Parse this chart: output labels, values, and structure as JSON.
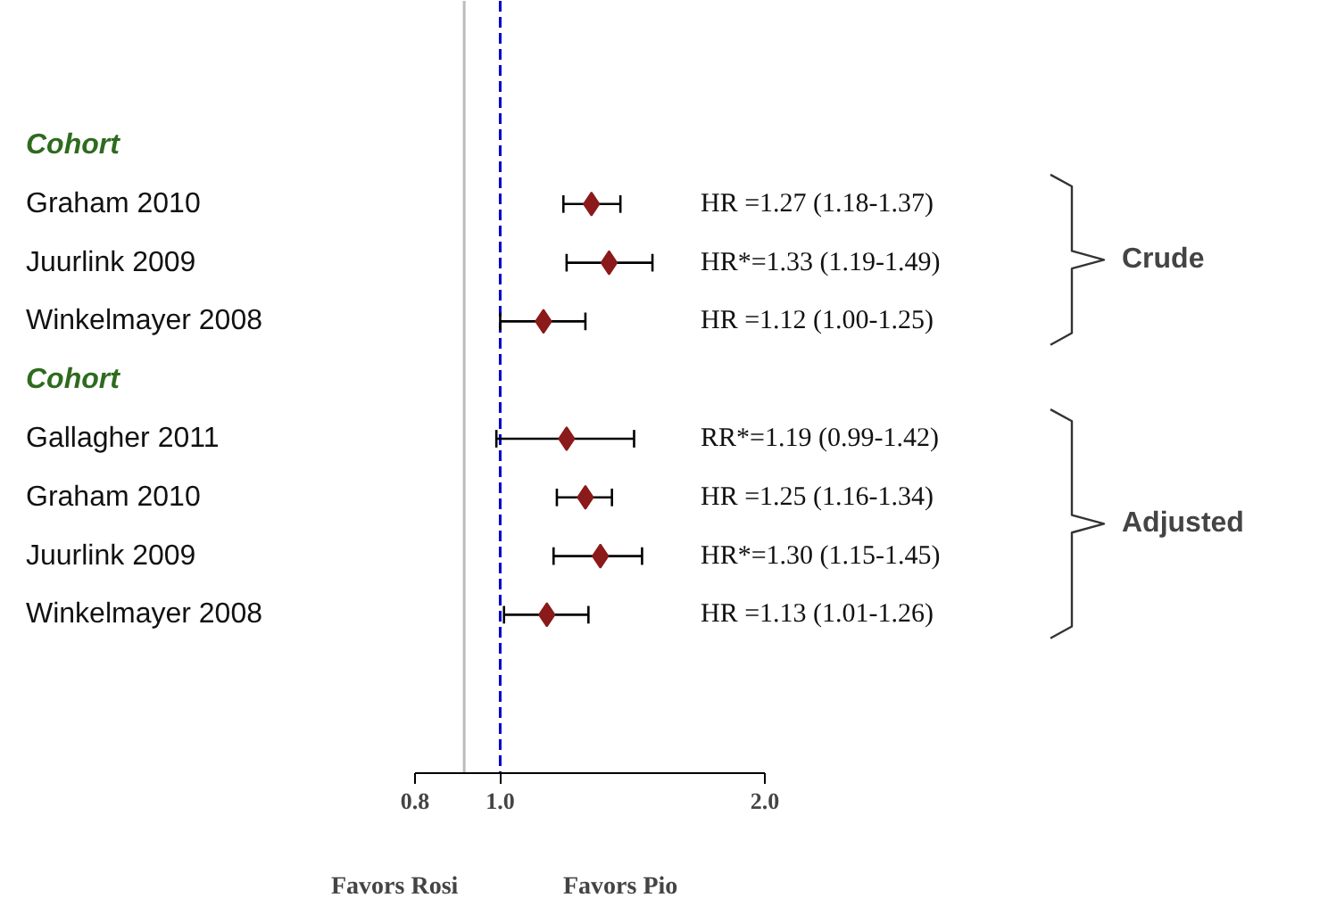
{
  "chart_data": {
    "type": "scatter",
    "orientation": "horizontal",
    "categories": [
      "Cohort",
      "Graham 2010",
      "Juurlink 2009",
      "Winkelmayer 2008",
      "Cohort",
      "Gallagher 2011",
      "Graham 2010",
      "Juurlink 2009",
      "Winkelmayer 2008"
    ],
    "values": [
      null,
      1.27,
      1.33,
      1.12,
      null,
      1.19,
      1.25,
      1.3,
      1.13
    ],
    "errors": [
      null,
      [
        1.18,
        1.37
      ],
      [
        1.19,
        1.49
      ],
      [
        1.0,
        1.25
      ],
      null,
      [
        0.99,
        1.42
      ],
      [
        1.16,
        1.34
      ],
      [
        1.15,
        1.45
      ],
      [
        1.01,
        1.26
      ]
    ],
    "value_labels": [
      null,
      "HR =1.27 (1.18-1.37)",
      "HR*=1.33 (1.19-1.49)",
      "HR =1.12 (1.00-1.25)",
      null,
      "RR*=1.19 (0.99-1.42)",
      "HR =1.25 (1.16-1.34)",
      "HR*=1.30 (1.15-1.45)",
      "HR =1.13 (1.01-1.26)"
    ],
    "color": "#8b1a1a",
    "marker": "diamond",
    "log": "x",
    "xlim": [
      0.8,
      2.0
    ],
    "xticks": [
      0.8,
      {
        "value": 1,
        "label": "1.0"
      },
      {
        "value": 2,
        "label": "2.0"
      }
    ],
    "ref_lines": [
      {
        "axis": "x",
        "value": 1,
        "color": "#0000cc",
        "line_style": "dashed"
      },
      {
        "axis": "x",
        "value": 0.91,
        "color": "#bbbbbb"
      }
    ],
    "annotations": [
      "Crude",
      "Adjusted",
      "Favors Rosi",
      "Favors Pio"
    ]
  }
}
